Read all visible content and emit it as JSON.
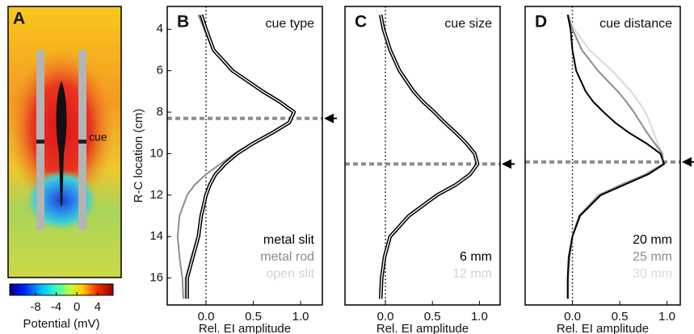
{
  "chart_data": [
    {
      "type": "heatmap",
      "label": "A",
      "annotation": "cue",
      "colorbar_label": "Potential (mV)",
      "clim": [
        -13,
        7
      ],
      "cticks": [
        -8,
        -4,
        0,
        4
      ]
    },
    {
      "type": "line",
      "label": "B",
      "title": "cue type",
      "ylabel": "R-C location (cm)",
      "xlabel": "Rel. EI amplitude",
      "xlim": [
        -0.41,
        1.23
      ],
      "xticks": [
        {
          "value": 0,
          "label": "0.0"
        },
        0.5,
        {
          "value": 1,
          "label": "1.0"
        }
      ],
      "ylim": [
        2.9,
        17.3
      ],
      "y_inverted": true,
      "yticks": [
        4,
        6,
        8,
        10,
        12,
        14,
        16
      ],
      "vline": 0,
      "cue_location": 8.3,
      "locations": [
        3.3,
        4,
        5,
        6,
        7,
        7.5,
        8,
        8.5,
        9,
        9.5,
        10,
        10.5,
        11,
        11.5,
        12,
        13,
        14,
        15,
        16,
        17
      ],
      "series": [
        {
          "name": "metal slit",
          "color": "#000000",
          "outlined": true,
          "values": [
            -0.05,
            0.0,
            0.08,
            0.28,
            0.6,
            0.78,
            0.93,
            0.88,
            0.7,
            0.5,
            0.33,
            0.2,
            0.1,
            0.04,
            0.0,
            -0.05,
            -0.08,
            -0.14,
            -0.2,
            -0.2
          ]
        },
        {
          "name": "metal rod",
          "color": "#8c8c8c",
          "values": [
            -0.08,
            -0.02,
            0.07,
            0.27,
            0.58,
            0.76,
            0.92,
            0.87,
            0.68,
            0.48,
            0.3,
            0.15,
            0.0,
            -0.12,
            -0.2,
            -0.28,
            -0.3,
            -0.28,
            -0.25,
            -0.24
          ]
        },
        {
          "name": "open slit",
          "color": "#d2d2d2",
          "values": [
            -0.05,
            0.0,
            0.08,
            0.28,
            0.6,
            0.78,
            0.93,
            0.88,
            0.7,
            0.5,
            0.33,
            0.2,
            0.1,
            0.04,
            0.0,
            -0.05,
            -0.09,
            -0.16,
            -0.22,
            -0.22
          ]
        }
      ]
    },
    {
      "type": "line",
      "label": "C",
      "title": "cue size",
      "xlabel": "Rel. EI amplitude",
      "xlim": [
        -0.43,
        1.22
      ],
      "xticks": [
        {
          "value": 0,
          "label": "0.0"
        },
        0.5,
        {
          "value": 1,
          "label": "1.0"
        }
      ],
      "ylim": [
        2.9,
        17.3
      ],
      "y_inverted": true,
      "vline": 0,
      "cue_location": 10.5,
      "locations": [
        3.3,
        4,
        5,
        6,
        7,
        7.5,
        8,
        8.5,
        9,
        9.5,
        10,
        10.5,
        11,
        11.5,
        12,
        13,
        14,
        15,
        16,
        17
      ],
      "series": [
        {
          "name": "6 mm",
          "color": "#000000",
          "outlined": true,
          "values": [
            -0.05,
            -0.02,
            0.05,
            0.15,
            0.3,
            0.4,
            0.52,
            0.63,
            0.75,
            0.86,
            0.95,
            0.98,
            0.9,
            0.75,
            0.55,
            0.25,
            0.05,
            -0.01,
            -0.04,
            -0.05
          ]
        },
        {
          "name": "12 mm",
          "color": "#d2d2d2",
          "values": [
            -0.05,
            -0.02,
            0.05,
            0.16,
            0.31,
            0.41,
            0.53,
            0.64,
            0.76,
            0.87,
            0.95,
            0.97,
            0.9,
            0.74,
            0.54,
            0.24,
            0.05,
            -0.01,
            -0.04,
            -0.05
          ]
        }
      ]
    },
    {
      "type": "line",
      "label": "D",
      "title": "cue distance",
      "xlabel": "Rel. EI amplitude",
      "xlim": [
        -0.5,
        1.14
      ],
      "xticks": [
        {
          "value": 0,
          "label": "0.0"
        },
        0.5,
        {
          "value": 1,
          "label": "1.0"
        }
      ],
      "ylim": [
        2.9,
        17.3
      ],
      "y_inverted": true,
      "vline": 0,
      "cue_location": 10.4,
      "locations": [
        3.3,
        4,
        5,
        6,
        7,
        7.5,
        8,
        8.5,
        9,
        9.5,
        10,
        10.5,
        11,
        11.5,
        12,
        13,
        14,
        15,
        16,
        17
      ],
      "series": [
        {
          "name": "20 mm",
          "color": "#000000",
          "values": [
            -0.05,
            -0.02,
            0.0,
            0.04,
            0.14,
            0.22,
            0.33,
            0.45,
            0.6,
            0.78,
            0.93,
            0.97,
            0.8,
            0.55,
            0.3,
            0.08,
            0.0,
            -0.04,
            -0.05,
            -0.05
          ]
        },
        {
          "name": "25 mm",
          "color": "#8c8c8c",
          "values": [
            -0.05,
            0.0,
            0.1,
            0.27,
            0.48,
            0.57,
            0.65,
            0.72,
            0.79,
            0.87,
            0.95,
            0.96,
            0.78,
            0.52,
            0.28,
            0.07,
            0.0,
            -0.03,
            -0.05,
            -0.05
          ]
        },
        {
          "name": "30 mm",
          "color": "#d9d9d9",
          "values": [
            -0.04,
            0.02,
            0.18,
            0.42,
            0.62,
            0.7,
            0.77,
            0.82,
            0.86,
            0.9,
            0.95,
            0.95,
            0.76,
            0.5,
            0.27,
            0.07,
            0.0,
            -0.03,
            -0.04,
            -0.04
          ]
        }
      ]
    }
  ]
}
